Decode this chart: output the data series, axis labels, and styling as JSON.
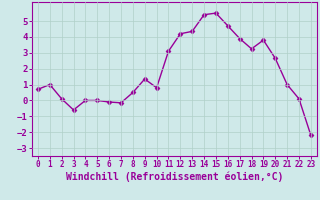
{
  "x": [
    0,
    1,
    2,
    3,
    4,
    5,
    6,
    7,
    8,
    9,
    10,
    11,
    12,
    13,
    14,
    15,
    16,
    17,
    18,
    19,
    20,
    21,
    22,
    23
  ],
  "y": [
    0.7,
    1.0,
    0.1,
    -0.6,
    0.0,
    0.0,
    -0.1,
    -0.15,
    0.5,
    1.35,
    0.8,
    3.1,
    4.2,
    4.35,
    5.4,
    5.5,
    4.7,
    3.9,
    3.25,
    3.8,
    2.65,
    1.0,
    0.1,
    -2.2
  ],
  "line_color": "#990099",
  "marker": "D",
  "markersize": 2.5,
  "linewidth": 1.0,
  "xlabel": "Windchill (Refroidissement éolien,°C)",
  "xlim": [
    -0.5,
    23.5
  ],
  "ylim": [
    -3.5,
    6.2
  ],
  "yticks": [
    -3,
    -2,
    -1,
    0,
    1,
    2,
    3,
    4,
    5
  ],
  "xticks": [
    0,
    1,
    2,
    3,
    4,
    5,
    6,
    7,
    8,
    9,
    10,
    11,
    12,
    13,
    14,
    15,
    16,
    17,
    18,
    19,
    20,
    21,
    22,
    23
  ],
  "bg_color": "#cfe9e9",
  "grid_color": "#b0d0c8",
  "xlabel_fontsize": 7,
  "tick_fontsize": 6.5,
  "xtick_fontsize": 5.5
}
